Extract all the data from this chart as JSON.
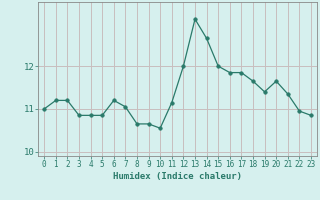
{
  "xlabel": "Humidex (Indice chaleur)",
  "x": [
    0,
    1,
    2,
    3,
    4,
    5,
    6,
    7,
    8,
    9,
    10,
    11,
    12,
    13,
    14,
    15,
    16,
    17,
    18,
    19,
    20,
    21,
    22,
    23
  ],
  "y": [
    11.0,
    11.2,
    11.2,
    10.85,
    10.85,
    10.85,
    11.2,
    11.05,
    10.65,
    10.65,
    10.55,
    11.15,
    12.0,
    13.1,
    12.65,
    12.0,
    11.85,
    11.85,
    11.65,
    11.4,
    11.65,
    11.35,
    10.95,
    10.85
  ],
  "ylim": [
    9.9,
    13.5
  ],
  "yticks": [
    10,
    11,
    12
  ],
  "line_color": "#2a7a6a",
  "marker": "o",
  "marker_size": 2.5,
  "bg_color": "#d6f0ee",
  "grid_color_v": "#c8bebe",
  "grid_color_h": "#c8bebe",
  "axis_color": "#888888",
  "tick_label_color": "#2a7a6a",
  "label_color": "#2a7a6a",
  "font_family": "monospace"
}
